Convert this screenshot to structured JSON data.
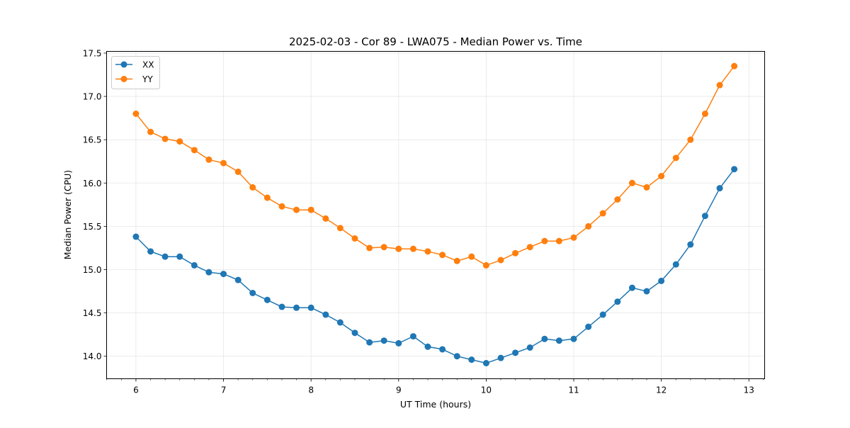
{
  "chart_data": {
    "type": "line",
    "title": "2025-02-03 - Cor 89 - LWA075 - Median Power vs. Time",
    "xlabel": "UT Time (hours)",
    "ylabel": "Median Power (CPU)",
    "xlim": [
      5.665,
      13.18
    ],
    "ylim": [
      13.74,
      17.52
    ],
    "xticks": [
      6,
      7,
      8,
      9,
      10,
      11,
      12,
      13
    ],
    "xtick_labels": [
      "6",
      "7",
      "8",
      "9",
      "10",
      "11",
      "12",
      "13"
    ],
    "x_minor_step": 0.16667,
    "yticks": [
      14.0,
      14.5,
      15.0,
      15.5,
      16.0,
      16.5,
      17.0,
      17.5
    ],
    "ytick_labels": [
      "14.0",
      "14.5",
      "15.0",
      "15.5",
      "16.0",
      "16.5",
      "17.0",
      "17.5"
    ],
    "grid": true,
    "legend_position": "top-left",
    "x": [
      6.0,
      6.167,
      6.333,
      6.5,
      6.667,
      6.833,
      7.0,
      7.167,
      7.333,
      7.5,
      7.667,
      7.833,
      8.0,
      8.167,
      8.333,
      8.5,
      8.667,
      8.833,
      9.0,
      9.167,
      9.333,
      9.5,
      9.667,
      9.833,
      10.0,
      10.167,
      10.333,
      10.5,
      10.667,
      10.833,
      11.0,
      11.167,
      11.333,
      11.5,
      11.667,
      11.833,
      12.0,
      12.167,
      12.333,
      12.5,
      12.667,
      12.833
    ],
    "series": [
      {
        "name": "XX",
        "color": "#1f77b4",
        "values": [
          15.38,
          15.21,
          15.15,
          15.15,
          15.05,
          14.97,
          14.95,
          14.88,
          14.73,
          14.65,
          14.57,
          14.56,
          14.56,
          14.48,
          14.39,
          14.27,
          14.16,
          14.18,
          14.15,
          14.23,
          14.11,
          14.08,
          14.0,
          13.96,
          13.92,
          13.98,
          14.04,
          14.1,
          14.2,
          14.18,
          14.2,
          14.34,
          14.48,
          14.63,
          14.79,
          14.75,
          14.87,
          15.06,
          15.29,
          15.62,
          15.94,
          16.16
        ]
      },
      {
        "name": "YY",
        "color": "#ff7f0e",
        "values": [
          16.8,
          16.59,
          16.51,
          16.48,
          16.38,
          16.27,
          16.23,
          16.13,
          15.95,
          15.83,
          15.73,
          15.69,
          15.69,
          15.59,
          15.48,
          15.36,
          15.25,
          15.26,
          15.24,
          15.24,
          15.21,
          15.17,
          15.1,
          15.15,
          15.05,
          15.11,
          15.19,
          15.26,
          15.33,
          15.33,
          15.37,
          15.5,
          15.65,
          15.81,
          16.0,
          15.95,
          16.08,
          16.29,
          16.5,
          16.8,
          17.13,
          17.35
        ]
      }
    ]
  }
}
